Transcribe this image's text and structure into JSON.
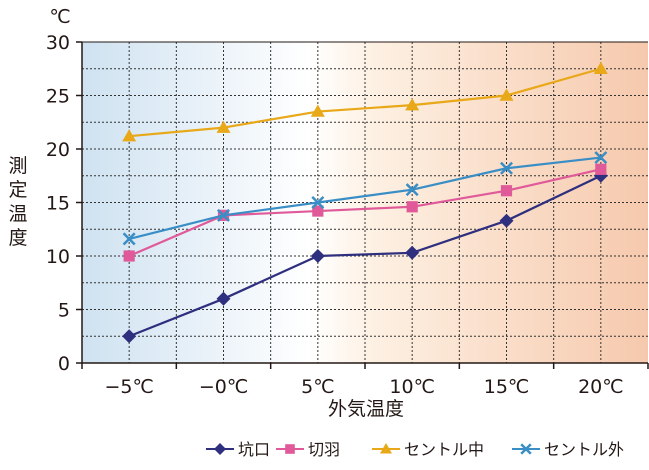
{
  "chart_data": {
    "type": "line",
    "title": "",
    "unit_label": "℃",
    "xlabel": "外気温度",
    "ylabel": "測定温度",
    "categories": [
      "−5℃",
      "−0℃",
      "5℃",
      "10℃",
      "15℃",
      "20℃"
    ],
    "ylim": [
      0,
      30
    ],
    "yticks": [
      0,
      5,
      10,
      15,
      20,
      25,
      30
    ],
    "grid": true,
    "legend_position": "bottom-right",
    "background_gradient": [
      "#cfe2f1",
      "#ffffff",
      "#fdf0e2",
      "#f6c9ad"
    ],
    "series": [
      {
        "name": "坑口",
        "color": "#2e2f7e",
        "marker": "diamond",
        "values": [
          2.5,
          6.0,
          10.0,
          10.3,
          13.3,
          17.5
        ]
      },
      {
        "name": "切羽",
        "color": "#e05a9a",
        "marker": "square",
        "values": [
          10.0,
          13.8,
          14.2,
          14.6,
          16.1,
          18.1
        ]
      },
      {
        "name": "セントル中",
        "color": "#e8a817",
        "marker": "triangle",
        "values": [
          21.2,
          22.0,
          23.5,
          24.1,
          25.0,
          27.5
        ]
      },
      {
        "name": "セントル外",
        "color": "#3a8ec6",
        "marker": "cross",
        "values": [
          11.6,
          13.8,
          15.0,
          16.2,
          18.2,
          19.2
        ]
      }
    ]
  }
}
